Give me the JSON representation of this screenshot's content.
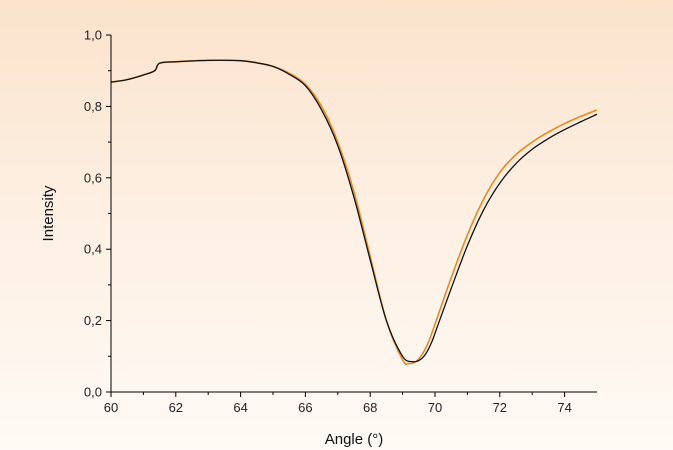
{
  "chart_data": {
    "type": "line",
    "title": "",
    "xlabel": "Angle (°)",
    "ylabel": "Intensity",
    "xlim": [
      60,
      75
    ],
    "ylim": [
      0.0,
      1.0
    ],
    "x_ticks": [
      60,
      62,
      64,
      66,
      68,
      70,
      72,
      74
    ],
    "x_tick_labels": [
      "60",
      "62",
      "64",
      "66",
      "68",
      "70",
      "72",
      "74"
    ],
    "y_ticks": [
      0.0,
      0.2,
      0.4,
      0.6,
      0.8,
      1.0
    ],
    "y_tick_labels": [
      "0,0",
      "0,2",
      "0,4",
      "0,6",
      "0,8",
      "1,0"
    ],
    "grid": false,
    "legend": "none",
    "series": [
      {
        "color": "#e8891e",
        "x": [
          60,
          60.5,
          61,
          61.35,
          61.5,
          62,
          63,
          64,
          64.5,
          65,
          65.5,
          66,
          66.5,
          67,
          67.5,
          68,
          68.5,
          69,
          69.2,
          69.4,
          69.6,
          69.8,
          70,
          70.5,
          71,
          71.5,
          72,
          72.5,
          73,
          73.5,
          74,
          74.5,
          75
        ],
        "y": [
          0.868,
          0.875,
          0.888,
          0.9,
          0.921,
          0.925,
          0.929,
          0.928,
          0.922,
          0.912,
          0.893,
          0.862,
          0.8,
          0.7,
          0.56,
          0.38,
          0.2,
          0.09,
          0.08,
          0.085,
          0.105,
          0.14,
          0.19,
          0.32,
          0.44,
          0.54,
          0.615,
          0.665,
          0.7,
          0.728,
          0.752,
          0.772,
          0.79
        ]
      },
      {
        "color": "#111111",
        "x": [
          60,
          60.5,
          61,
          61.35,
          61.5,
          62,
          63,
          64,
          64.5,
          65,
          65.5,
          66,
          66.5,
          67,
          67.5,
          68,
          68.5,
          69,
          69.3,
          69.5,
          69.7,
          69.9,
          70.1,
          70.5,
          71,
          71.5,
          72,
          72.5,
          73,
          73.5,
          74,
          74.5,
          75
        ],
        "y": [
          0.868,
          0.875,
          0.888,
          0.9,
          0.921,
          0.925,
          0.929,
          0.928,
          0.922,
          0.912,
          0.89,
          0.858,
          0.79,
          0.69,
          0.545,
          0.37,
          0.2,
          0.1,
          0.085,
          0.088,
          0.105,
          0.14,
          0.19,
          0.29,
          0.41,
          0.51,
          0.585,
          0.64,
          0.68,
          0.71,
          0.735,
          0.757,
          0.778
        ]
      }
    ]
  }
}
